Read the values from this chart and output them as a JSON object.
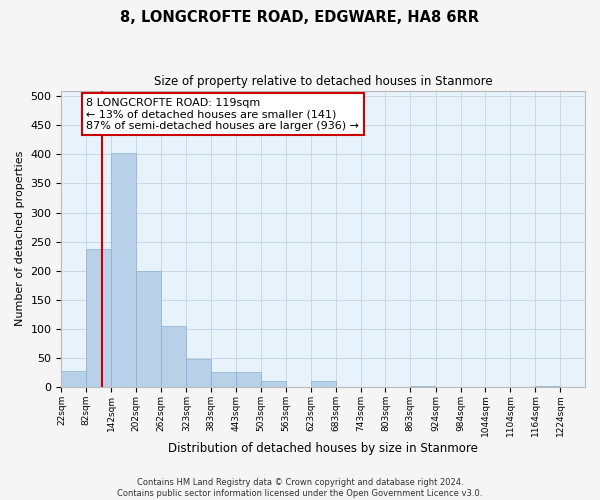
{
  "title": "8, LONGCROFTE ROAD, EDGWARE, HA8 6RR",
  "subtitle": "Size of property relative to detached houses in Stanmore",
  "xlabel": "Distribution of detached houses by size in Stanmore",
  "ylabel": "Number of detached properties",
  "bar_color": "#b8d0e8",
  "bar_edge_color": "#8ab0d0",
  "bin_edges": [
    22,
    82,
    142,
    202,
    262,
    323,
    383,
    443,
    503,
    563,
    623,
    683,
    743,
    803,
    863,
    924,
    984,
    1044,
    1104,
    1164,
    1224
  ],
  "bin_labels": [
    "22sqm",
    "82sqm",
    "142sqm",
    "202sqm",
    "262sqm",
    "323sqm",
    "383sqm",
    "443sqm",
    "503sqm",
    "563sqm",
    "623sqm",
    "683sqm",
    "743sqm",
    "803sqm",
    "863sqm",
    "924sqm",
    "984sqm",
    "1044sqm",
    "1104sqm",
    "1164sqm",
    "1224sqm"
  ],
  "bar_heights": [
    27,
    237,
    403,
    199,
    105,
    48,
    26,
    25,
    10,
    0,
    10,
    0,
    0,
    0,
    2,
    0,
    0,
    0,
    0,
    2
  ],
  "vline_x": 119,
  "vline_color": "#cc0000",
  "annotation_title": "8 LONGCROFTE ROAD: 119sqm",
  "annotation_line1": "← 13% of detached houses are smaller (141)",
  "annotation_line2": "87% of semi-detached houses are larger (936) →",
  "annotation_box_color": "#ffffff",
  "annotation_box_edge_color": "#cc0000",
  "ylim": [
    0,
    510
  ],
  "yticks": [
    0,
    50,
    100,
    150,
    200,
    250,
    300,
    350,
    400,
    450,
    500
  ],
  "grid_color": "#c8d8ea",
  "background_color": "#e8f2fa",
  "fig_background_color": "#f5f5f5",
  "footer_line1": "Contains HM Land Registry data © Crown copyright and database right 2024.",
  "footer_line2": "Contains public sector information licensed under the Open Government Licence v3.0."
}
